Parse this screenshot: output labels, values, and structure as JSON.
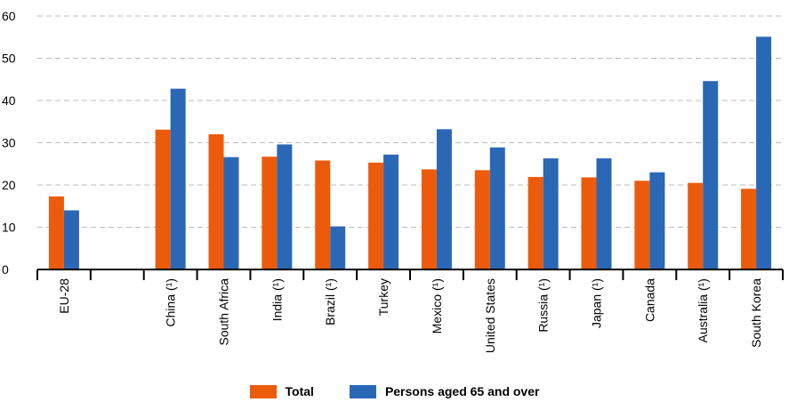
{
  "chart_data": {
    "type": "bar",
    "categories": [
      "EU-28",
      "",
      "China (¹)",
      "South Africa",
      "India (¹)",
      "Brazil (¹)",
      "Turkey",
      "Mexico (¹)",
      "United States",
      "Russia (¹)",
      "Japan (¹)",
      "Canada",
      "Australia (¹)",
      "South Korea"
    ],
    "series": [
      {
        "name": "Total",
        "color": "#ec5b0c",
        "values": [
          17.3,
          null,
          33.1,
          32.0,
          26.7,
          25.8,
          25.3,
          23.7,
          23.5,
          21.9,
          21.8,
          21.0,
          20.5,
          19.1
        ]
      },
      {
        "name": "Persons aged 65 and over",
        "color": "#2a68b6",
        "values": [
          14.0,
          null,
          42.8,
          26.6,
          29.6,
          10.2,
          27.2,
          33.2,
          28.9,
          26.3,
          26.3,
          23.0,
          44.6,
          55.1
        ]
      }
    ],
    "yticks": [
      0,
      10,
      20,
      30,
      40,
      50,
      60
    ],
    "ylim": [
      0,
      60
    ],
    "grid": true,
    "legend_position": "bottom-center",
    "title": "",
    "xlabel": "",
    "ylabel": ""
  }
}
